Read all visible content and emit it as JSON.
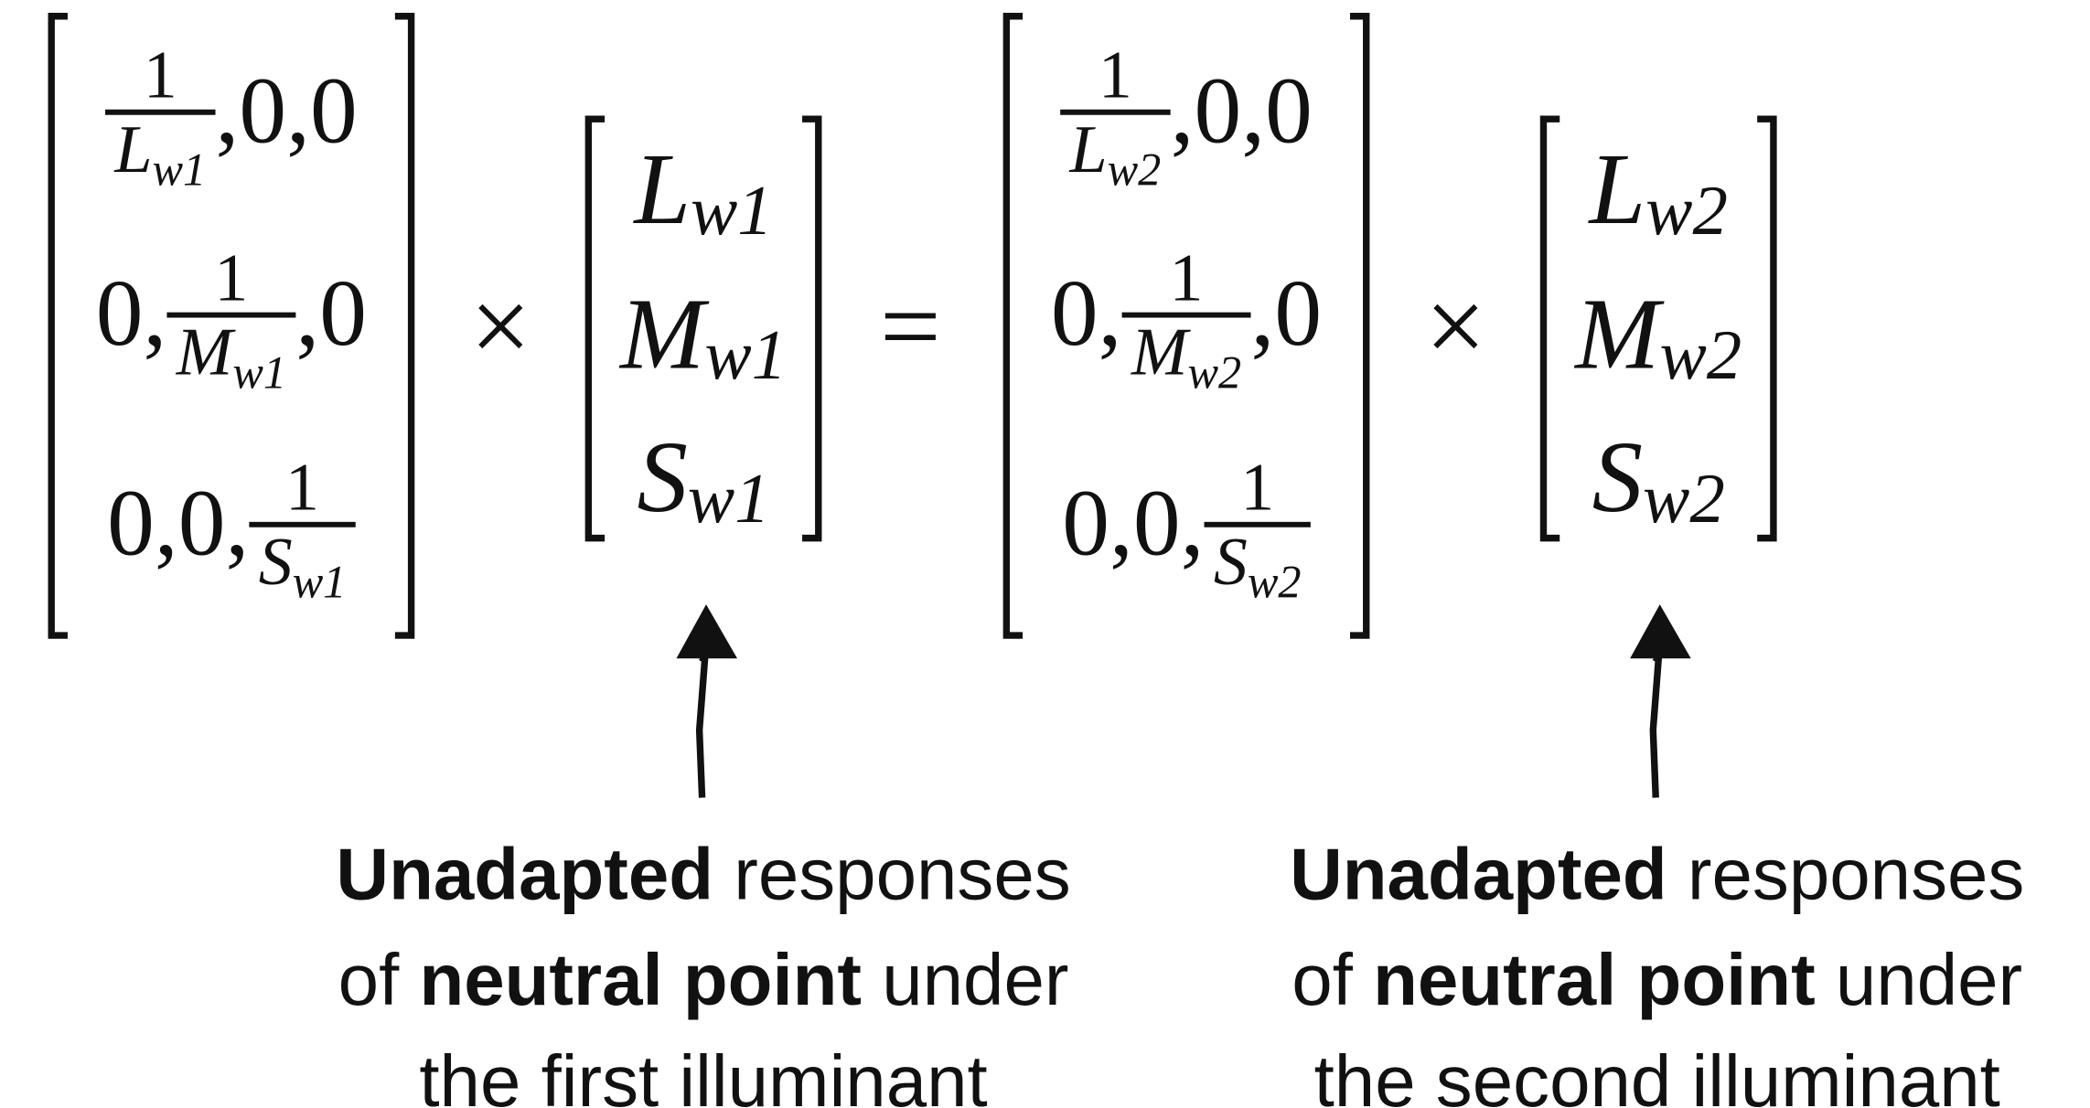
{
  "equation": {
    "matrices": [
      {
        "rows": [
          {
            "num": "1",
            "den": "L",
            "den_sub": "w1",
            "after": ",0,0"
          },
          {
            "before": "0,",
            "num": "1",
            "den": "M",
            "den_sub": "w1",
            "after": ",0"
          },
          {
            "before": "0,0,",
            "num": "1",
            "den": "S",
            "den_sub": "w1"
          }
        ]
      },
      {
        "rows": [
          {
            "num": "1",
            "den": "L",
            "den_sub": "w2",
            "after": ",0,0"
          },
          {
            "before": "0,",
            "num": "1",
            "den": "M",
            "den_sub": "w2",
            "after": ",0"
          },
          {
            "before": "0,0,",
            "num": "1",
            "den": "S",
            "den_sub": "w2"
          }
        ]
      }
    ],
    "vectors": [
      {
        "entries": [
          {
            "base": "L",
            "sub": "w1"
          },
          {
            "base": "M",
            "sub": "w1"
          },
          {
            "base": "S",
            "sub": "w1"
          }
        ]
      },
      {
        "entries": [
          {
            "base": "L",
            "sub": "w2"
          },
          {
            "base": "M",
            "sub": "w2"
          },
          {
            "base": "S",
            "sub": "w2"
          }
        ]
      }
    ],
    "operators": [
      "×",
      "=",
      "×"
    ],
    "captions": [
      {
        "lines": [
          [
            {
              "text": "Unadapted",
              "bold": true
            },
            {
              "text": " responses"
            }
          ],
          [
            {
              "text": "of "
            },
            {
              "text": "neutral point",
              "bold": true
            },
            {
              "text": " under"
            }
          ],
          [
            {
              "text": "the first illuminant"
            }
          ]
        ]
      },
      {
        "lines": [
          [
            {
              "text": "Unadapted",
              "bold": true
            },
            {
              "text": " responses"
            }
          ],
          [
            {
              "text": "of "
            },
            {
              "text": "neutral point",
              "bold": true
            },
            {
              "text": " under"
            }
          ],
          [
            {
              "text": "the second illuminant"
            }
          ]
        ]
      }
    ]
  }
}
